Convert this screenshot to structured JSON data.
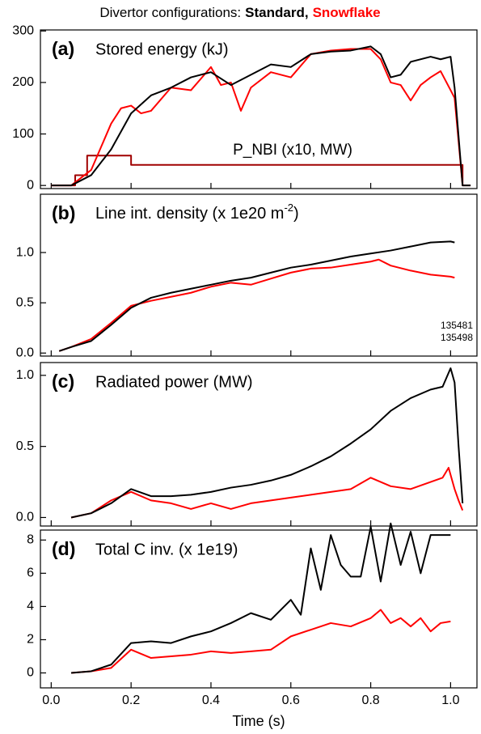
{
  "header": [
    "Divertor configurations:",
    "Standard,",
    "Snowflake"
  ],
  "chart_data": [
    {
      "type": "line",
      "panel": "(a)",
      "title": "Stored energy (kJ)",
      "xlim": [
        -0.027,
        1.066
      ],
      "xticks": [
        {
          "value": 0,
          "label": "0.0"
        },
        0.2,
        0.4,
        0.6,
        0.8,
        {
          "value": 1,
          "label": "1.0"
        }
      ],
      "ylim": [
        -6,
        302
      ],
      "yticks": [
        0,
        100,
        200,
        300
      ],
      "series": [
        {
          "color": "#000000",
          "x": [
            0,
            0.05,
            0.1,
            0.15,
            0.2,
            0.25,
            0.3,
            0.35,
            0.4,
            0.45,
            0.5,
            0.55,
            0.6,
            0.65,
            0.7,
            0.75,
            0.8,
            0.825,
            0.85,
            0.875,
            0.9,
            0.95,
            0.975,
            1.0,
            1.01,
            1.03,
            1.05
          ],
          "values": [
            0,
            0,
            20,
            70,
            140,
            175,
            190,
            210,
            220,
            195,
            215,
            235,
            230,
            255,
            260,
            262,
            270,
            255,
            210,
            215,
            240,
            250,
            245,
            250,
            190,
            0,
            0
          ]
        },
        {
          "color": "#ff0000",
          "x": [
            0,
            0.05,
            0.1,
            0.15,
            0.175,
            0.2,
            0.225,
            0.25,
            0.3,
            0.35,
            0.4,
            0.425,
            0.45,
            0.475,
            0.5,
            0.55,
            0.6,
            0.65,
            0.7,
            0.75,
            0.8,
            0.825,
            0.85,
            0.875,
            0.9,
            0.925,
            0.95,
            0.975,
            1.0,
            1.01,
            1.03
          ],
          "values": [
            0,
            0,
            30,
            120,
            150,
            155,
            140,
            145,
            190,
            185,
            230,
            195,
            200,
            145,
            190,
            220,
            210,
            255,
            262,
            265,
            265,
            245,
            200,
            195,
            165,
            195,
            210,
            222,
            185,
            170,
            0
          ]
        },
        {
          "name": "P_NBI (x10, MW)",
          "color": "#a00000",
          "x": [
            0,
            0.06,
            0.06,
            0.09,
            0.09,
            0.2,
            0.2,
            1.03,
            1.03,
            1.05
          ],
          "values": [
            0,
            0,
            20,
            20,
            58,
            58,
            40,
            40,
            0,
            0
          ]
        }
      ]
    },
    {
      "type": "line",
      "panel": "(b)",
      "title": [
        "Line int. density (x 1e20 m",
        "-2",
        ")"
      ],
      "xlim": [
        -0.027,
        1.066
      ],
      "xticks": [
        {
          "value": 0,
          "label": "0.0"
        },
        0.2,
        0.4,
        0.6,
        0.8,
        {
          "value": 1,
          "label": "1.0"
        }
      ],
      "ylim": [
        -0.03,
        1.58
      ],
      "yticks": [
        {
          "value": 0,
          "label": "0.0"
        },
        0.5,
        {
          "value": 1,
          "label": "1.0"
        }
      ],
      "series": [
        {
          "name": "135481",
          "color": "#000000",
          "x": [
            0.02,
            0.05,
            0.1,
            0.15,
            0.2,
            0.25,
            0.3,
            0.35,
            0.4,
            0.45,
            0.5,
            0.55,
            0.6,
            0.65,
            0.7,
            0.75,
            0.8,
            0.85,
            0.9,
            0.95,
            1.0,
            1.01
          ],
          "values": [
            0.02,
            0.06,
            0.12,
            0.28,
            0.45,
            0.55,
            0.6,
            0.64,
            0.68,
            0.72,
            0.75,
            0.8,
            0.85,
            0.88,
            0.92,
            0.96,
            0.99,
            1.02,
            1.06,
            1.1,
            1.11,
            1.1
          ]
        },
        {
          "name": "135498",
          "color": "#ff0000",
          "x": [
            0.02,
            0.05,
            0.1,
            0.15,
            0.2,
            0.25,
            0.3,
            0.35,
            0.4,
            0.45,
            0.5,
            0.55,
            0.6,
            0.65,
            0.7,
            0.75,
            0.8,
            0.82,
            0.85,
            0.9,
            0.95,
            1.0,
            1.01
          ],
          "values": [
            0.02,
            0.06,
            0.14,
            0.3,
            0.47,
            0.52,
            0.56,
            0.6,
            0.66,
            0.7,
            0.68,
            0.74,
            0.8,
            0.84,
            0.85,
            0.88,
            0.91,
            0.93,
            0.87,
            0.82,
            0.78,
            0.76,
            0.75
          ]
        }
      ]
    },
    {
      "type": "line",
      "panel": "(c)",
      "title": "Radiated power (MW)",
      "xlim": [
        -0.027,
        1.066
      ],
      "xticks": [
        {
          "value": 0,
          "label": "0.0"
        },
        0.2,
        0.4,
        0.6,
        0.8,
        {
          "value": 1,
          "label": "1.0"
        }
      ],
      "ylim": [
        -0.06,
        1.09
      ],
      "yticks": [
        {
          "value": 0,
          "label": "0.0"
        },
        0.5,
        {
          "value": 1,
          "label": "1.0"
        }
      ],
      "series": [
        {
          "color": "#000000",
          "x": [
            0.05,
            0.1,
            0.15,
            0.2,
            0.25,
            0.3,
            0.35,
            0.4,
            0.45,
            0.5,
            0.55,
            0.6,
            0.65,
            0.7,
            0.75,
            0.8,
            0.85,
            0.9,
            0.95,
            0.98,
            1.0,
            1.01,
            1.02,
            1.03
          ],
          "values": [
            0,
            0.03,
            0.1,
            0.2,
            0.15,
            0.15,
            0.16,
            0.18,
            0.21,
            0.23,
            0.26,
            0.3,
            0.36,
            0.43,
            0.52,
            0.62,
            0.75,
            0.84,
            0.9,
            0.92,
            1.05,
            0.95,
            0.5,
            0.1
          ]
        },
        {
          "color": "#ff0000",
          "x": [
            0.05,
            0.1,
            0.15,
            0.2,
            0.25,
            0.3,
            0.35,
            0.4,
            0.45,
            0.5,
            0.55,
            0.6,
            0.65,
            0.7,
            0.75,
            0.8,
            0.85,
            0.9,
            0.95,
            0.98,
            0.995,
            1.01,
            1.02,
            1.03
          ],
          "values": [
            0,
            0.03,
            0.12,
            0.18,
            0.12,
            0.1,
            0.06,
            0.1,
            0.06,
            0.1,
            0.12,
            0.14,
            0.16,
            0.18,
            0.2,
            0.28,
            0.22,
            0.2,
            0.25,
            0.28,
            0.35,
            0.2,
            0.12,
            0.05
          ]
        }
      ]
    },
    {
      "type": "line",
      "panel": "(d)",
      "title": "Total C inv. (x 1e19)",
      "xlabel": "Time (s)",
      "xlim": [
        -0.027,
        1.066
      ],
      "xticks": [
        {
          "value": 0,
          "label": "0.0"
        },
        0.2,
        0.4,
        0.6,
        0.8,
        {
          "value": 1,
          "label": "1.0"
        }
      ],
      "xticklabels": true,
      "ylim": [
        -0.9,
        8.6
      ],
      "yticks": [
        0,
        2,
        4,
        6,
        8
      ],
      "series": [
        {
          "color": "#000000",
          "x": [
            0.05,
            0.1,
            0.15,
            0.2,
            0.25,
            0.3,
            0.35,
            0.4,
            0.45,
            0.5,
            0.55,
            0.6,
            0.625,
            0.65,
            0.675,
            0.7,
            0.725,
            0.75,
            0.775,
            0.8,
            0.825,
            0.85,
            0.875,
            0.9,
            0.925,
            0.95,
            0.975,
            1.0
          ],
          "values": [
            0,
            0.1,
            0.5,
            1.8,
            1.9,
            1.8,
            2.2,
            2.5,
            3.0,
            3.6,
            3.2,
            4.4,
            3.5,
            7.5,
            5,
            8.3,
            6.5,
            5.8,
            5.8,
            8.8,
            5.5,
            9.0,
            6.5,
            8.5,
            6.0,
            8.3,
            8.3,
            8.3
          ]
        },
        {
          "color": "#ff0000",
          "x": [
            0.05,
            0.1,
            0.15,
            0.2,
            0.25,
            0.3,
            0.35,
            0.4,
            0.45,
            0.5,
            0.55,
            0.6,
            0.65,
            0.7,
            0.75,
            0.8,
            0.825,
            0.85,
            0.875,
            0.9,
            0.925,
            0.95,
            0.975,
            1.0
          ],
          "values": [
            0,
            0.1,
            0.3,
            1.4,
            0.9,
            1.0,
            1.1,
            1.3,
            1.2,
            1.3,
            1.4,
            2.2,
            2.6,
            3.0,
            2.8,
            3.3,
            3.8,
            3.0,
            3.3,
            2.8,
            3.3,
            2.5,
            3.0,
            3.1
          ]
        }
      ]
    }
  ]
}
